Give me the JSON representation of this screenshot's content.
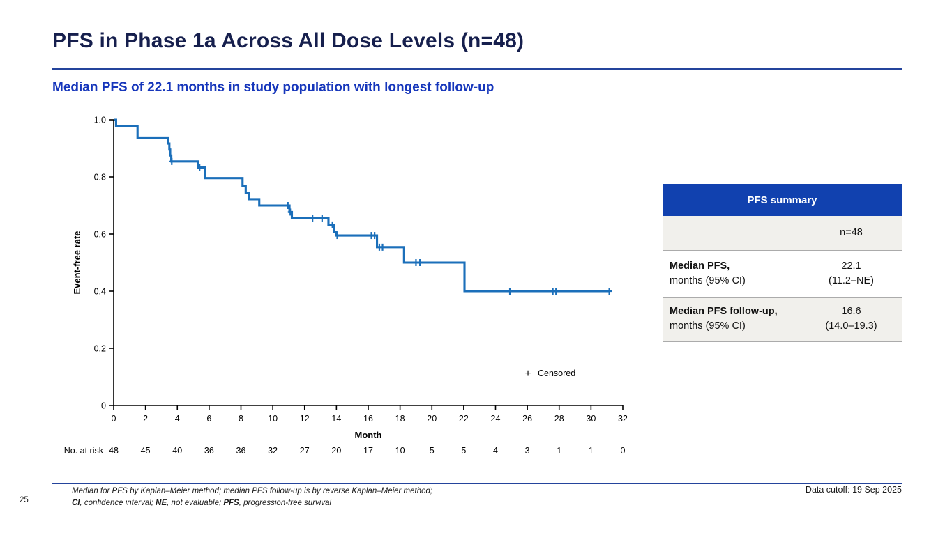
{
  "slide": {
    "title": "PFS in Phase 1a Across All Dose Levels (n=48)",
    "subtitle": "Median PFS of 22.1 months in study population with longest follow-up",
    "page_number": "25",
    "data_cutoff": "Data cutoff: 19 Sep 2025",
    "colors": {
      "title": "#161f4d",
      "subtitle": "#1636bb",
      "rule": "#24449c"
    }
  },
  "summary_table": {
    "header": "PFS summary",
    "header_bg": "#1141af",
    "row_gray_bg": "#f1f0ec",
    "col_header": "n=48",
    "rows": [
      {
        "label_bold": "Median PFS,",
        "label_rest": "months (95% CI)",
        "value_line1": "22.1",
        "value_line2": "(11.2–NE)"
      },
      {
        "label_bold": "Median PFS follow-up,",
        "label_rest": "months (95% CI)",
        "value_line1": "16.6",
        "value_line2": "(14.0–19.3)"
      }
    ]
  },
  "footnotes": {
    "line1": "Median for PFS by Kaplan–Meier method; median PFS follow-up is by reverse Kaplan–Meier method;",
    "line2_parts": [
      {
        "text": "CI",
        "bold": true
      },
      {
        "text": ", confidence interval; ",
        "bold": false
      },
      {
        "text": "NE",
        "bold": true
      },
      {
        "text": ", not evaluable; ",
        "bold": false
      },
      {
        "text": "PFS",
        "bold": true
      },
      {
        "text": ", progression-free survival",
        "bold": false
      }
    ]
  },
  "chart_data": {
    "type": "line",
    "subtype": "kaplan-meier-step",
    "title": "",
    "xlabel": "Month",
    "ylabel": "Event-free rate",
    "xlim": [
      0,
      32
    ],
    "ylim": [
      0,
      1.0
    ],
    "xticks": [
      0,
      2,
      4,
      6,
      8,
      10,
      12,
      14,
      16,
      18,
      20,
      22,
      24,
      26,
      28,
      30,
      32
    ],
    "yticks": [
      1.0,
      0.8,
      0.6,
      0.4,
      0.2,
      0
    ],
    "ytick_labels": [
      "1.0",
      "0.8",
      "0.6",
      "0.4",
      "0.2",
      "0"
    ],
    "grid": false,
    "line_color": "#1b6fba",
    "legend": [
      {
        "symbol": "+",
        "label": "Censored",
        "position": "inside-lower-right"
      }
    ],
    "series": [
      {
        "name": "PFS all dose levels (n=48)",
        "median_months": 22.1,
        "steps": [
          [
            0,
            1.0
          ],
          [
            0.15,
            0.979
          ],
          [
            1.5,
            0.938
          ],
          [
            3.4,
            0.917
          ],
          [
            3.5,
            0.896
          ],
          [
            3.55,
            0.875
          ],
          [
            3.62,
            0.854
          ],
          [
            5.3,
            0.833
          ],
          [
            5.75,
            0.796
          ],
          [
            8.1,
            0.768
          ],
          [
            8.3,
            0.744
          ],
          [
            8.5,
            0.722
          ],
          [
            9.15,
            0.7
          ],
          [
            11.05,
            0.677
          ],
          [
            11.2,
            0.656
          ],
          [
            13.5,
            0.632
          ],
          [
            13.85,
            0.608
          ],
          [
            14.0,
            0.595
          ],
          [
            16.55,
            0.554
          ],
          [
            18.25,
            0.5
          ],
          [
            22.05,
            0.4
          ]
        ],
        "end_time": 31.2,
        "censors": [
          [
            3.65,
            0.854
          ],
          [
            5.4,
            0.833
          ],
          [
            10.95,
            0.7
          ],
          [
            11.1,
            0.677
          ],
          [
            12.5,
            0.656
          ],
          [
            13.1,
            0.656
          ],
          [
            13.75,
            0.632
          ],
          [
            14.05,
            0.595
          ],
          [
            16.2,
            0.595
          ],
          [
            16.4,
            0.595
          ],
          [
            16.7,
            0.554
          ],
          [
            16.9,
            0.554
          ],
          [
            19.0,
            0.5
          ],
          [
            19.25,
            0.5
          ],
          [
            24.9,
            0.4
          ],
          [
            27.6,
            0.4
          ],
          [
            27.8,
            0.4
          ],
          [
            31.15,
            0.4
          ]
        ]
      }
    ],
    "risk_table": {
      "label": "No. at risk",
      "times": [
        0,
        2,
        4,
        6,
        8,
        10,
        12,
        14,
        16,
        18,
        20,
        22,
        24,
        26,
        28,
        30,
        32
      ],
      "counts": [
        "48",
        "45",
        "40",
        "36",
        "36",
        "32",
        "27",
        "20",
        "17",
        "10",
        "5",
        "5",
        "4",
        "3",
        "1",
        "1",
        "0"
      ]
    }
  }
}
